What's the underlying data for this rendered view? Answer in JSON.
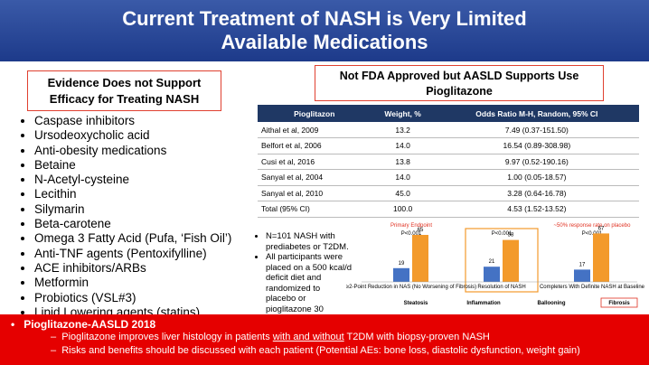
{
  "header": {
    "title_line1": "Current Treatment of NASH is Very Limited",
    "title_line2": "Available Medications"
  },
  "left": {
    "box_title": "Evidence Does not Support Efficacy for Treating NASH",
    "items": [
      "Caspase inhibitors",
      "Ursodeoxycholic acid",
      "Anti-obesity medications",
      "Betaine",
      "N-Acetyl-cysteine",
      "Lecithin",
      "Silymarin",
      "Beta-carotene",
      "Omega 3 Fatty Acid (Pufa, ‘Fish Oil’)",
      "Anti-TNF agents (Pentoxifylline)",
      "ACE inhibitors/ARBs",
      "Metformin",
      "Probiotics (VSL#3)",
      "Lipid Lowering agents (statins)"
    ]
  },
  "right": {
    "box_title_line1": "Not FDA Approved but AASLD Supports Use",
    "box_title_line2": "Pioglitazone",
    "table": {
      "header": [
        "Pioglitazon",
        "Weight, %",
        "Odds Ratio M-H, Random, 95% CI"
      ],
      "rows": [
        [
          "Aithal et al, 2009",
          "13.2",
          "7.49 (0.37-151.50)"
        ],
        [
          "Belfort et al, 2006",
          "14.0",
          "16.54 (0.89-308.98)"
        ],
        [
          "Cusi et al, 2016",
          "13.8",
          "9.97 (0.52-190.16)"
        ],
        [
          "Sanyal et al, 2004",
          "14.0",
          "1.00 (0.05-18.57)"
        ],
        [
          "Sanyal et al, 2010",
          "45.0",
          "3.28 (0.64-16.78)"
        ],
        [
          "Total (95% CI)",
          "100.0",
          "4.53 (1.52-13.52)"
        ]
      ]
    },
    "bullets": [
      "N=101 NASH with prediabetes or T2DM.",
      "All participants were placed on a 500 kcal/d deficit diet and randomized to placebo or pioglitazone 30"
    ]
  },
  "mini_chart": {
    "type": "bar",
    "primary_label": "Primary Endpoint",
    "placebo_note": "~50% response rate on placebo",
    "categories": [
      "≥2-Point Reduction in NAS (No Worsening of Fibrosis)",
      "Resolution of NASH",
      "Completers With Definite NASH at Baseline"
    ],
    "p_values": [
      "P<0.001",
      "P<0.001",
      "P<0.001"
    ],
    "series": [
      {
        "color": "#4472c4",
        "values": [
          19,
          21,
          17
        ]
      },
      {
        "color": "#f39a2b",
        "values": [
          65,
          58,
          67
        ]
      }
    ],
    "bottom_labels": [
      "Steatosis",
      "Inflammation",
      "Ballooning",
      "Fibrosis"
    ]
  },
  "footer": {
    "heading": "Pioglitazone-AASLD 2018",
    "line1_a": "Pioglitazone improves liver histology in patients ",
    "line1_b": "with and without",
    "line1_c": " T2DM with biopsy-proven NASH",
    "line2": "Risks and benefits should be discussed with each patient (Potential AEs: bone loss, diastolic dysfunction, weight gain)"
  }
}
